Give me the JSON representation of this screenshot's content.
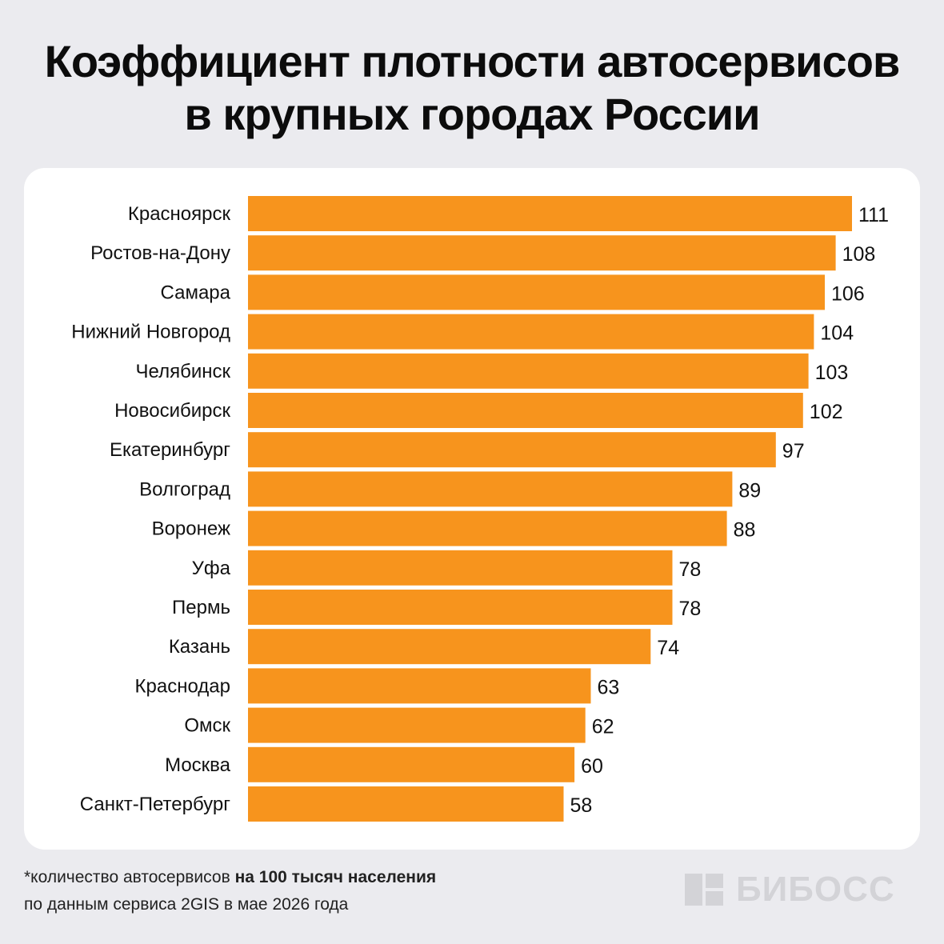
{
  "title": {
    "line1": "Коэффициент плотности автосервисов",
    "line2": "в крупных городах России"
  },
  "chart_data": {
    "type": "bar",
    "orientation": "horizontal",
    "categories": [
      "Красноярск",
      "Ростов-на-Дону",
      "Самара",
      "Нижний Новгород",
      "Челябинск",
      "Новосибирск",
      "Екатеринбург",
      "Волгоград",
      "Воронеж",
      "Уфа",
      "Пермь",
      "Казань",
      "Краснодар",
      "Омск",
      "Москва",
      "Санкт-Петербург"
    ],
    "values": [
      111,
      108,
      106,
      104,
      103,
      102,
      97,
      89,
      88,
      78,
      78,
      74,
      63,
      62,
      60,
      58
    ],
    "bar_color": "#f7941d",
    "xlim": [
      0,
      111
    ],
    "grid": false,
    "legend": "none"
  },
  "footnote": {
    "line1_prefix": "*количество автосервисов ",
    "line1_bold": "на 100 тысяч населения",
    "line2": "по данным сервиса 2GIS в мае 2026 года"
  },
  "logo": {
    "name": "БИБОСС",
    "icon": "bibOSS-square-logo-icon",
    "color": "#d3d3d7"
  }
}
